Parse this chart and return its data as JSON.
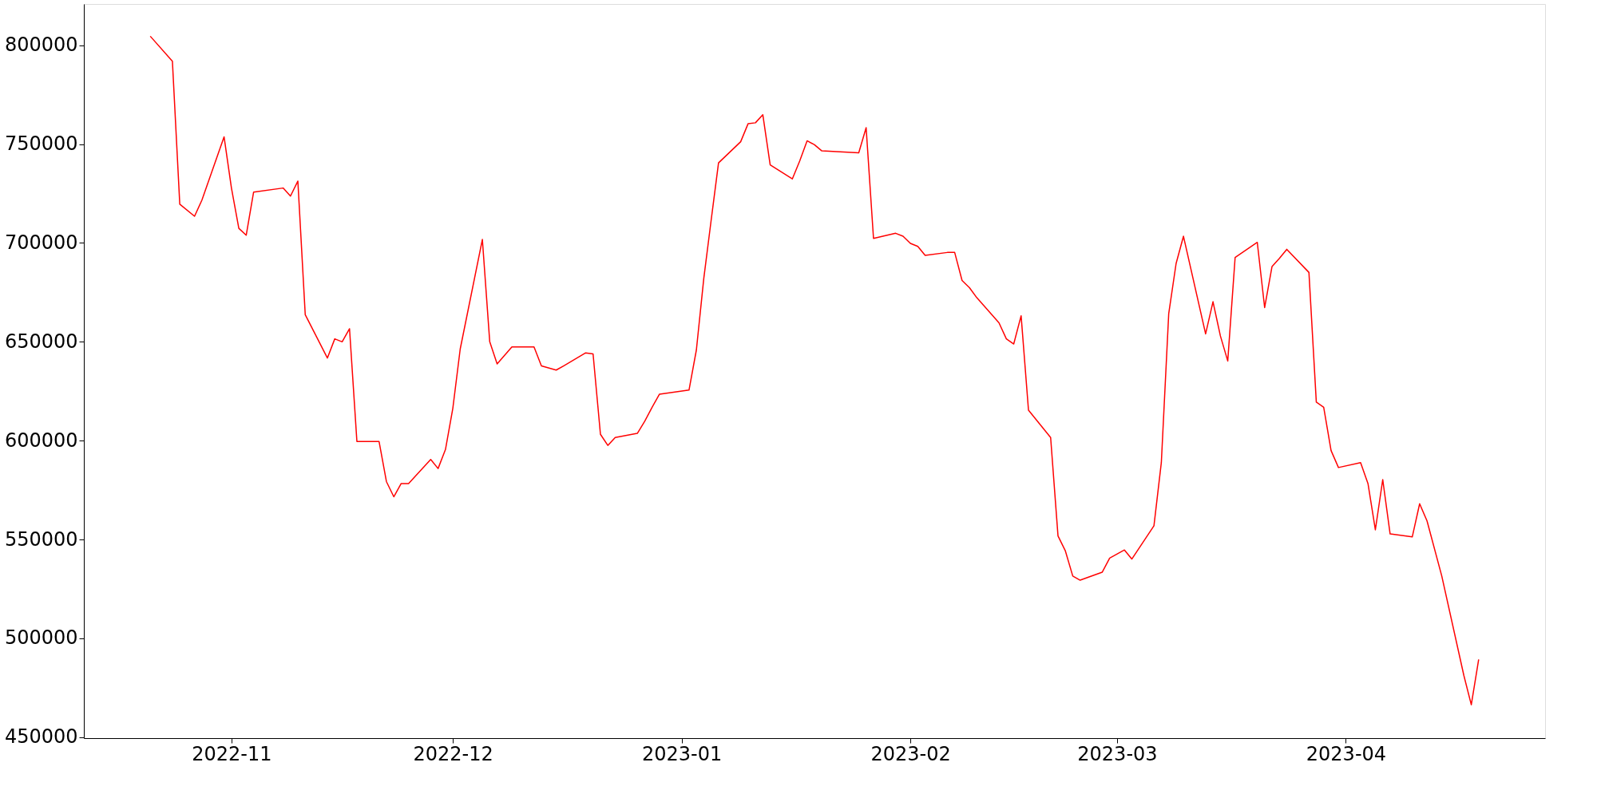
{
  "chart_data": {
    "type": "line",
    "grid": false,
    "line_style": "solid",
    "marker": "none",
    "xlim": [
      "2022-10-12",
      "2023-04-28"
    ],
    "xticks": [
      "2022-11",
      "2022-12",
      "2023-01",
      "2023-02",
      "2023-03",
      "2023-04"
    ],
    "ylim": [
      449500,
      820900
    ],
    "yticks": [
      450000,
      500000,
      550000,
      600000,
      650000,
      700000,
      750000,
      800000
    ],
    "x": [
      "2022-10-21",
      "2022-10-24",
      "2022-10-25",
      "2022-10-27",
      "2022-10-28",
      "2022-10-31",
      "2022-11-01",
      "2022-11-02",
      "2022-11-03",
      "2022-11-04",
      "2022-11-08",
      "2022-11-09",
      "2022-11-10",
      "2022-11-11",
      "2022-11-14",
      "2022-11-15",
      "2022-11-16",
      "2022-11-17",
      "2022-11-18",
      "2022-11-21",
      "2022-11-22",
      "2022-11-23",
      "2022-11-24",
      "2022-11-25",
      "2022-11-28",
      "2022-11-29",
      "2022-11-30",
      "2022-12-01",
      "2022-12-02",
      "2022-12-05",
      "2022-12-06",
      "2022-12-07",
      "2022-12-09",
      "2022-12-12",
      "2022-12-13",
      "2022-12-15",
      "2022-12-16",
      "2022-12-19",
      "2022-12-20",
      "2022-12-21",
      "2022-12-22",
      "2022-12-23",
      "2022-12-26",
      "2022-12-27",
      "2022-12-28",
      "2022-12-29",
      "2023-01-02",
      "2023-01-03",
      "2023-01-04",
      "2023-01-05",
      "2023-01-06",
      "2023-01-09",
      "2023-01-10",
      "2023-01-11",
      "2023-01-12",
      "2023-01-13",
      "2023-01-16",
      "2023-01-17",
      "2023-01-18",
      "2023-01-19",
      "2023-01-20",
      "2023-01-25",
      "2023-01-26",
      "2023-01-27",
      "2023-01-30",
      "2023-01-31",
      "2023-02-01",
      "2023-02-02",
      "2023-02-03",
      "2023-02-06",
      "2023-02-07",
      "2023-02-08",
      "2023-02-09",
      "2023-02-10",
      "2023-02-13",
      "2023-02-14",
      "2023-02-15",
      "2023-02-16",
      "2023-02-17",
      "2023-02-20",
      "2023-02-21",
      "2023-02-22",
      "2023-02-23",
      "2023-02-24",
      "2023-02-27",
      "2023-02-28",
      "2023-03-02",
      "2023-03-03",
      "2023-03-06",
      "2023-03-07",
      "2023-03-08",
      "2023-03-09",
      "2023-03-10",
      "2023-03-13",
      "2023-03-14",
      "2023-03-15",
      "2023-03-16",
      "2023-03-17",
      "2023-03-20",
      "2023-03-21",
      "2023-03-22",
      "2023-03-23",
      "2023-03-24",
      "2023-03-27",
      "2023-03-28",
      "2023-03-29",
      "2023-03-30",
      "2023-03-31",
      "2023-04-03",
      "2023-04-04",
      "2023-04-05",
      "2023-04-06",
      "2023-04-07",
      "2023-04-10",
      "2023-04-11",
      "2023-04-12",
      "2023-04-14",
      "2023-04-17",
      "2023-04-18",
      "2023-04-19"
    ],
    "series": [
      {
        "color": "#ff0000",
        "values": [
          804600,
          791900,
          719600,
          713500,
          721700,
          753700,
          727800,
          707400,
          703900,
          725700,
          727800,
          723700,
          731300,
          663700,
          641800,
          651500,
          650000,
          656600,
          599600,
          599600,
          579300,
          571600,
          578300,
          578300,
          590500,
          585900,
          595500,
          616400,
          646400,
          701800,
          650000,
          638800,
          647400,
          647400,
          637800,
          635700,
          637800,
          644400,
          643900,
          603200,
          597600,
          601600,
          603700,
          609800,
          616900,
          623500,
          625600,
          645900,
          682000,
          711500,
          740500,
          751200,
          760300,
          760800,
          764900,
          739500,
          732400,
          741500,
          751700,
          749700,
          746600,
          745600,
          758300,
          702300,
          704900,
          703400,
          699800,
          698300,
          693700,
          695200,
          695200,
          681000,
          677400,
          672300,
          659600,
          651500,
          648900,
          663200,
          615400,
          601600,
          551800,
          544200,
          531500,
          529400,
          533500,
          540600,
          544700,
          540100,
          556900,
          588900,
          664200,
          689600,
          703400,
          654000,
          670300,
          653000,
          640300,
          692700,
          700300,
          667300,
          688100,
          692200,
          696800,
          685100,
          619500,
          616900,
          595000,
          586400,
          588900,
          578300,
          554900,
          580300,
          552800,
          551300,
          568100,
          559400,
          531500,
          481100,
          466400,
          489300
        ]
      }
    ]
  }
}
